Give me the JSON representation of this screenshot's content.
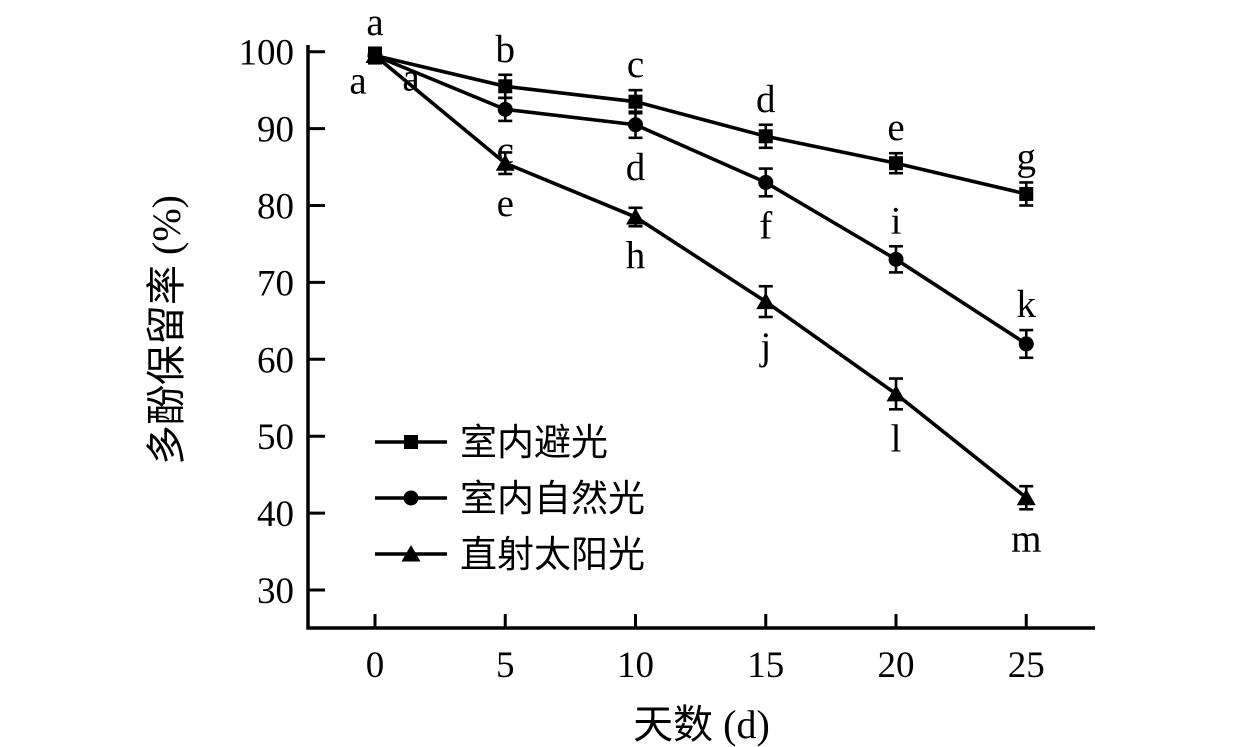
{
  "chart_data": {
    "type": "line",
    "title": "",
    "xlabel": "天数 (d)",
    "ylabel": "多酚保留率 (%)",
    "x": [
      0,
      5,
      10,
      15,
      20,
      25
    ],
    "x_tick_labels": [
      "0",
      "5",
      "10",
      "15",
      "20",
      "25"
    ],
    "y_ticks": [
      30,
      40,
      50,
      60,
      70,
      80,
      90,
      100
    ],
    "xlim": [
      -2.6,
      27.7
    ],
    "ylim": [
      25,
      101
    ],
    "grid": false,
    "legend_position": "inside-lower-left",
    "line_color": "#000000",
    "series": [
      {
        "name": "室内避光",
        "marker": "square",
        "values": [
          99.5,
          95.5,
          93.5,
          89.0,
          85.5,
          81.5
        ],
        "errors": [
          1.0,
          1.5,
          1.5,
          1.5,
          1.3,
          1.5
        ],
        "letters": [
          "a",
          "b",
          "c",
          "d",
          "e",
          "g"
        ],
        "letter_positions": [
          "above",
          "above",
          "above",
          "above",
          "above",
          "above"
        ]
      },
      {
        "name": "室内自然光",
        "marker": "circle",
        "values": [
          99.5,
          92.5,
          90.5,
          83.0,
          73.0,
          62.0
        ],
        "errors": [
          1.0,
          1.5,
          1.7,
          1.8,
          1.7,
          1.8
        ],
        "letters": [
          "a",
          "c",
          "d",
          "f",
          "i",
          "k"
        ],
        "letter_positions": [
          "left",
          "below",
          "below",
          "below",
          "above",
          "above"
        ]
      },
      {
        "name": "直射太阳光",
        "marker": "triangle",
        "values": [
          99.5,
          85.5,
          78.5,
          67.5,
          55.5,
          42.0
        ],
        "errors": [
          1.0,
          1.4,
          1.2,
          2.0,
          2.0,
          1.5
        ],
        "letters": [
          "a",
          "e",
          "h",
          "j",
          "l",
          "m"
        ],
        "letter_positions": [
          "right",
          "below",
          "below",
          "below",
          "below",
          "below"
        ]
      }
    ]
  }
}
